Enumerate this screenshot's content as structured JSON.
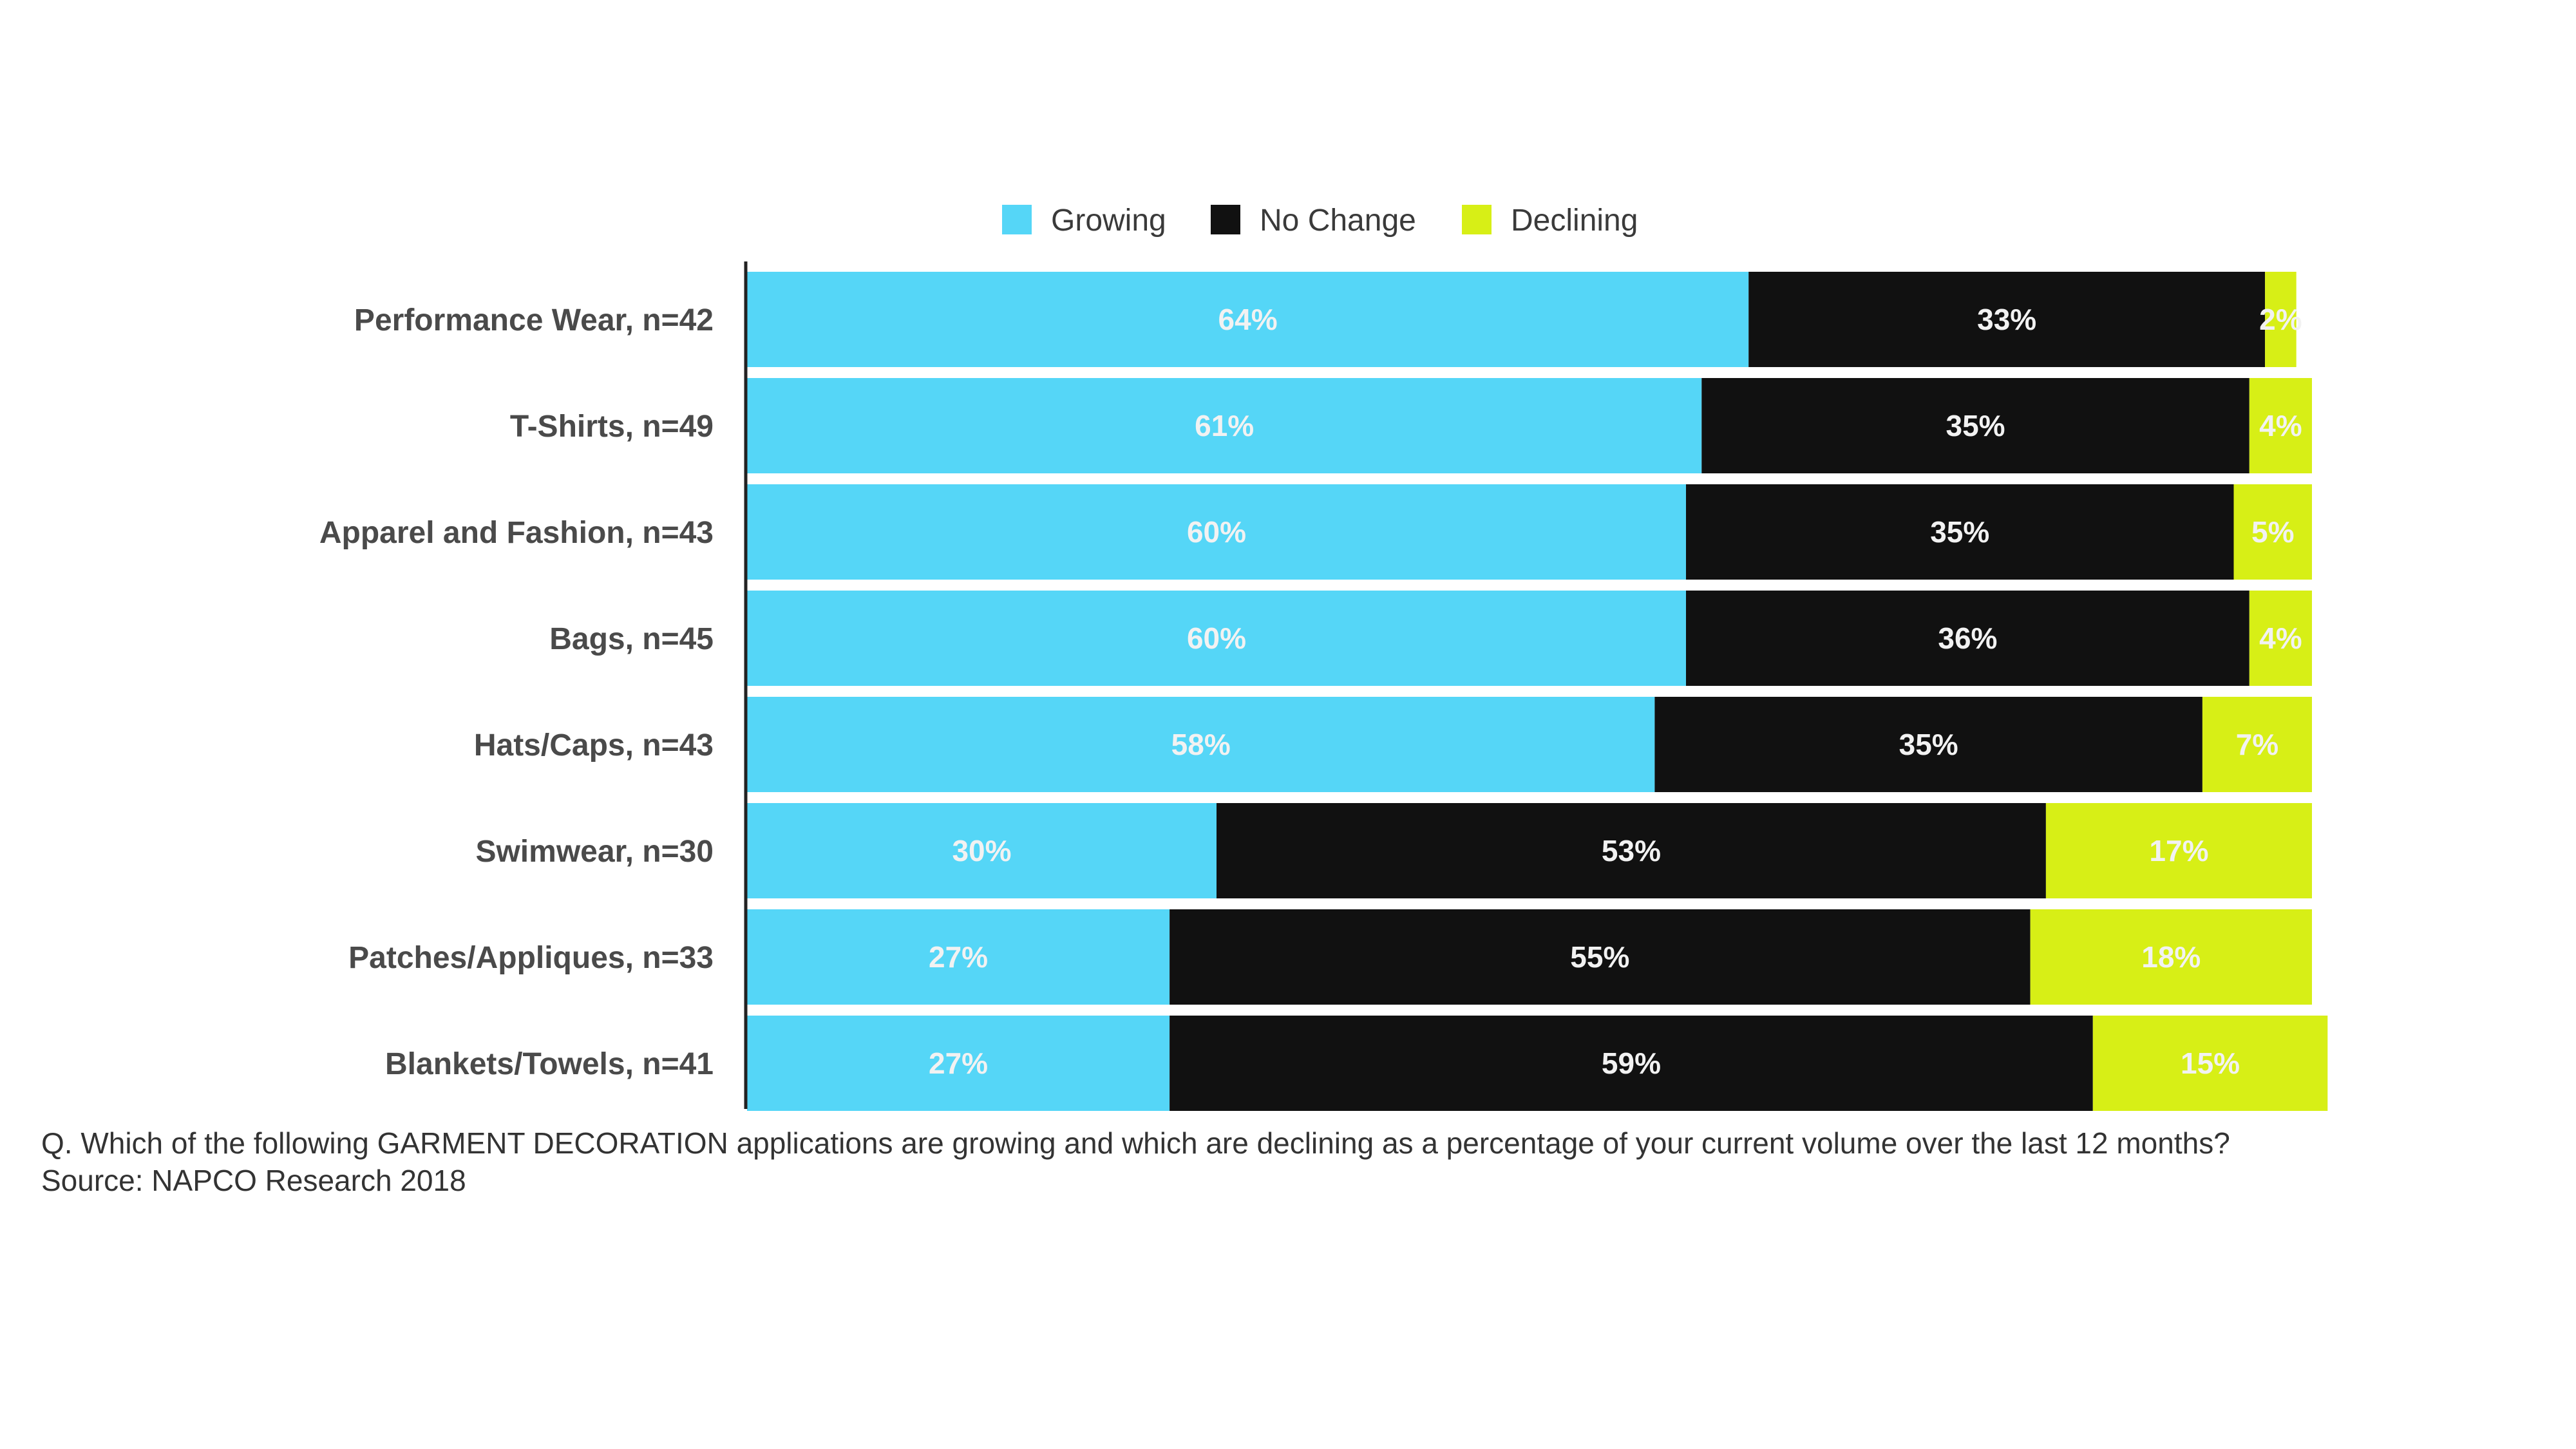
{
  "chart_data": {
    "type": "bar",
    "orientation": "horizontal",
    "stacked": true,
    "categories": [
      "Performance Wear, n=42",
      "T-Shirts, n=49",
      "Apparel and Fashion, n=43",
      "Bags, n=45",
      "Hats/Caps, n=43",
      "Swimwear, n=30",
      "Patches/Appliques, n=33",
      "Blankets/Towels, n=41"
    ],
    "series": [
      {
        "name": "Growing",
        "color": "#55d6f7",
        "values": [
          64,
          61,
          60,
          60,
          58,
          30,
          27,
          27
        ]
      },
      {
        "name": "No Change",
        "color": "#111111",
        "values": [
          33,
          35,
          35,
          36,
          35,
          53,
          55,
          59
        ]
      },
      {
        "name": "Declining",
        "color": "#d7ef16",
        "values": [
          2,
          4,
          5,
          4,
          7,
          17,
          18,
          15
        ]
      }
    ],
    "data_labels": [
      [
        "64%",
        "33%",
        "2%"
      ],
      [
        "61%",
        "35%",
        "4%"
      ],
      [
        "60%",
        "35%",
        "5%"
      ],
      [
        "60%",
        "36%",
        "4%"
      ],
      [
        "58%",
        "35%",
        "7%"
      ],
      [
        "30%",
        "53%",
        "17%"
      ],
      [
        "27%",
        "55%",
        "18%"
      ],
      [
        "27%",
        "59%",
        "15%"
      ]
    ],
    "xlim": [
      0,
      100
    ],
    "legend_position": "top",
    "grid": false
  },
  "footnote": {
    "question": "Q. Which of the following GARMENT DECORATION applications are growing and which are declining as a percentage of your current volume over the last 12 months?",
    "source": "Source: NAPCO Research 2018"
  }
}
